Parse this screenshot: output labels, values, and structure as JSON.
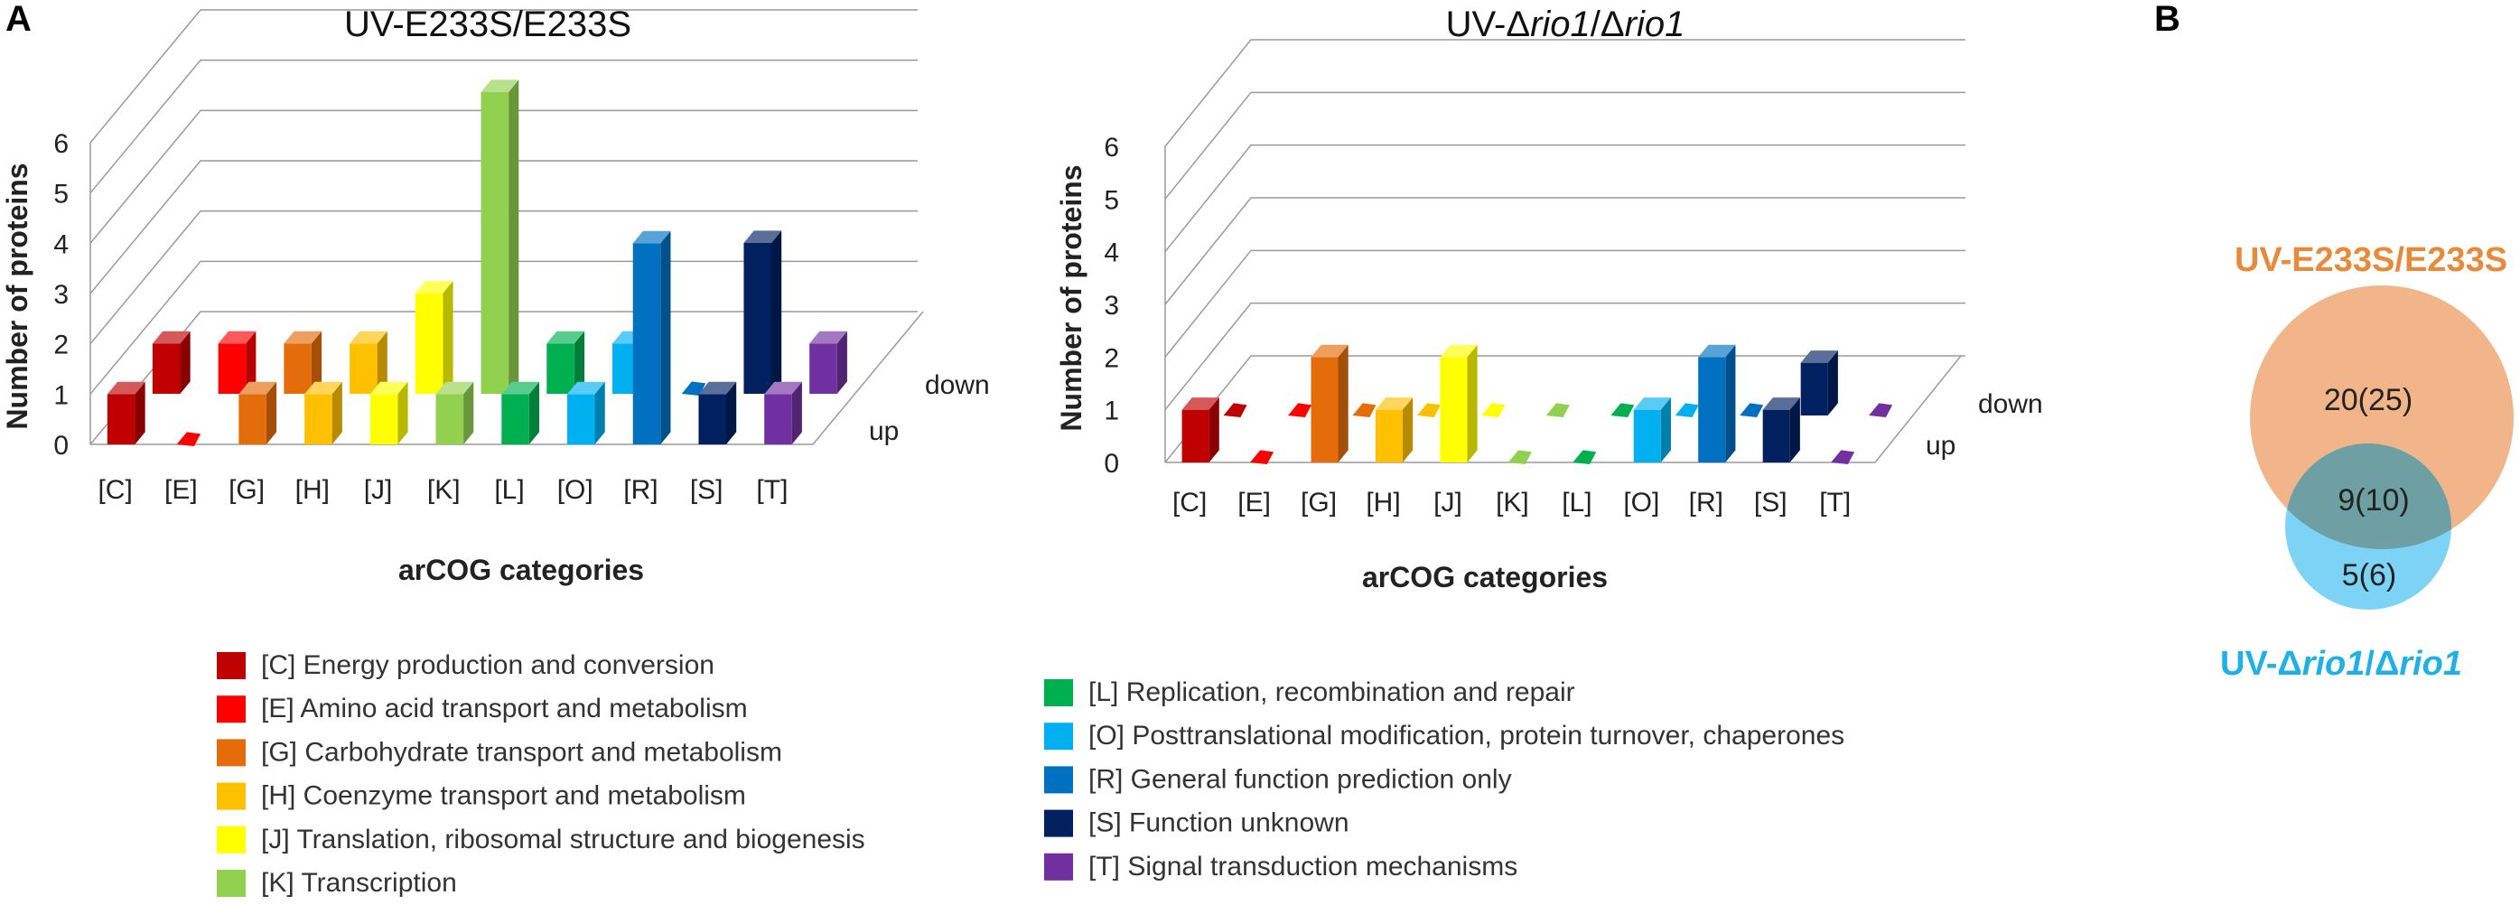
{
  "panel_a_label": "A",
  "panel_b_label": "B",
  "chart_data": [
    {
      "type": "bar",
      "title_prefix": "UV-",
      "title_emph": "",
      "title_mid": "E233S/E233S",
      "title_emph2": "",
      "title_suffix": "",
      "xlabel": "arCOG categories",
      "ylabel": "Number of proteins",
      "ylim": [
        0,
        6
      ],
      "yticks": [
        "0",
        "1",
        "2",
        "3",
        "4",
        "5",
        "6"
      ],
      "categories": [
        "[C]",
        "[E]",
        "[G]",
        "[H]",
        "[J]",
        "[K]",
        "[L]",
        "[O]",
        "[R]",
        "[S]",
        "[T]"
      ],
      "depth_labels": [
        "up",
        "down"
      ],
      "series": [
        {
          "name": "up",
          "values": [
            1,
            0,
            1,
            1,
            1,
            1,
            1,
            1,
            4,
            1,
            1
          ]
        },
        {
          "name": "down",
          "values": [
            1,
            1,
            1,
            1,
            2,
            6,
            1,
            1,
            0,
            3,
            1
          ]
        }
      ]
    },
    {
      "type": "bar",
      "title_prefix": "UV-Δ",
      "title_emph": "rio1",
      "title_mid": "/Δ",
      "title_emph2": "rio1",
      "title_suffix": "",
      "xlabel": "arCOG categories",
      "ylabel": "Number of proteins",
      "ylim": [
        0,
        6
      ],
      "yticks": [
        "0",
        "1",
        "2",
        "3",
        "4",
        "5",
        "6"
      ],
      "categories": [
        "[C]",
        "[E]",
        "[G]",
        "[H]",
        "[J]",
        "[K]",
        "[L]",
        "[O]",
        "[R]",
        "[S]",
        "[T]"
      ],
      "depth_labels": [
        "up",
        "down"
      ],
      "series": [
        {
          "name": "up",
          "values": [
            1,
            0,
            2,
            1,
            2,
            0,
            0,
            1,
            2,
            1,
            0
          ]
        },
        {
          "name": "down",
          "values": [
            0,
            0,
            0,
            0,
            0,
            0,
            0,
            0,
            0,
            1,
            0
          ]
        }
      ]
    }
  ],
  "legend_col1": [
    {
      "code": "C",
      "label": "[C] Energy production and conversion",
      "color": "#C00000"
    },
    {
      "code": "E",
      "label": "[E] Amino acid transport and metabolism",
      "color": "#FF0000"
    },
    {
      "code": "G",
      "label": "[G] Carbohydrate transport and metabolism",
      "color": "#E46C0A"
    },
    {
      "code": "H",
      "label": "[H] Coenzyme transport and metabolism",
      "color": "#FFC000"
    },
    {
      "code": "J",
      "label": "[J] Translation, ribosomal structure and biogenesis",
      "color": "#FFFF00"
    },
    {
      "code": "K",
      "label": "[K] Transcription",
      "color": "#92D050"
    }
  ],
  "legend_col2": [
    {
      "code": "L",
      "label": "[L] Replication, recombination and repair",
      "color": "#00B050"
    },
    {
      "code": "O",
      "label": "[O] Posttranslational modification, protein turnover, chaperones",
      "color": "#00B0F0"
    },
    {
      "code": "R",
      "label": "[R] General function prediction only",
      "color": "#0070C0"
    },
    {
      "code": "S",
      "label": "[S] Function unknown",
      "color": "#002060"
    },
    {
      "code": "T",
      "label": "[T] Signal transduction mechanisms",
      "color": "#7030A0"
    }
  ],
  "venn": {
    "set1_label": "UV-E233S/E233S",
    "set1_color": "#E88A3C",
    "set1_fill": "#F2B58A",
    "set2_label_prefix": "UV-Δ",
    "set2_label_emph": "rio1",
    "set2_label_mid": "/Δ",
    "set2_label_emph2": "rio1",
    "set2_color": "#1FB0E8",
    "set2_fill": "#7DD3F5",
    "overlap_fill": "#6E9FA3",
    "only1": "20(25)",
    "both": "9(10)",
    "only2": "5(6)"
  }
}
